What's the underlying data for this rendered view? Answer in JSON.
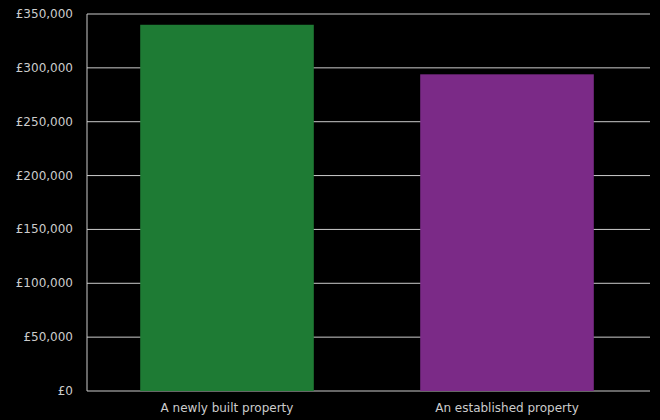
{
  "chart_data": {
    "type": "bar",
    "categories": [
      "A newly built property",
      "An established property"
    ],
    "values": [
      340000,
      294000
    ],
    "colors": [
      "#1e7b34",
      "#7b2a87"
    ],
    "ylim": [
      0,
      350000
    ],
    "yticks": [
      {
        "value": 0,
        "label": "£0"
      },
      {
        "value": 50000,
        "label": "£50,000"
      },
      {
        "value": 100000,
        "label": "£100,000"
      },
      {
        "value": 150000,
        "label": "£150,000"
      },
      {
        "value": 200000,
        "label": "£200,000"
      },
      {
        "value": 250000,
        "label": "£250,000"
      },
      {
        "value": 300000,
        "label": "£300,000"
      },
      {
        "value": 350000,
        "label": "£350,000"
      }
    ],
    "grid": true
  }
}
